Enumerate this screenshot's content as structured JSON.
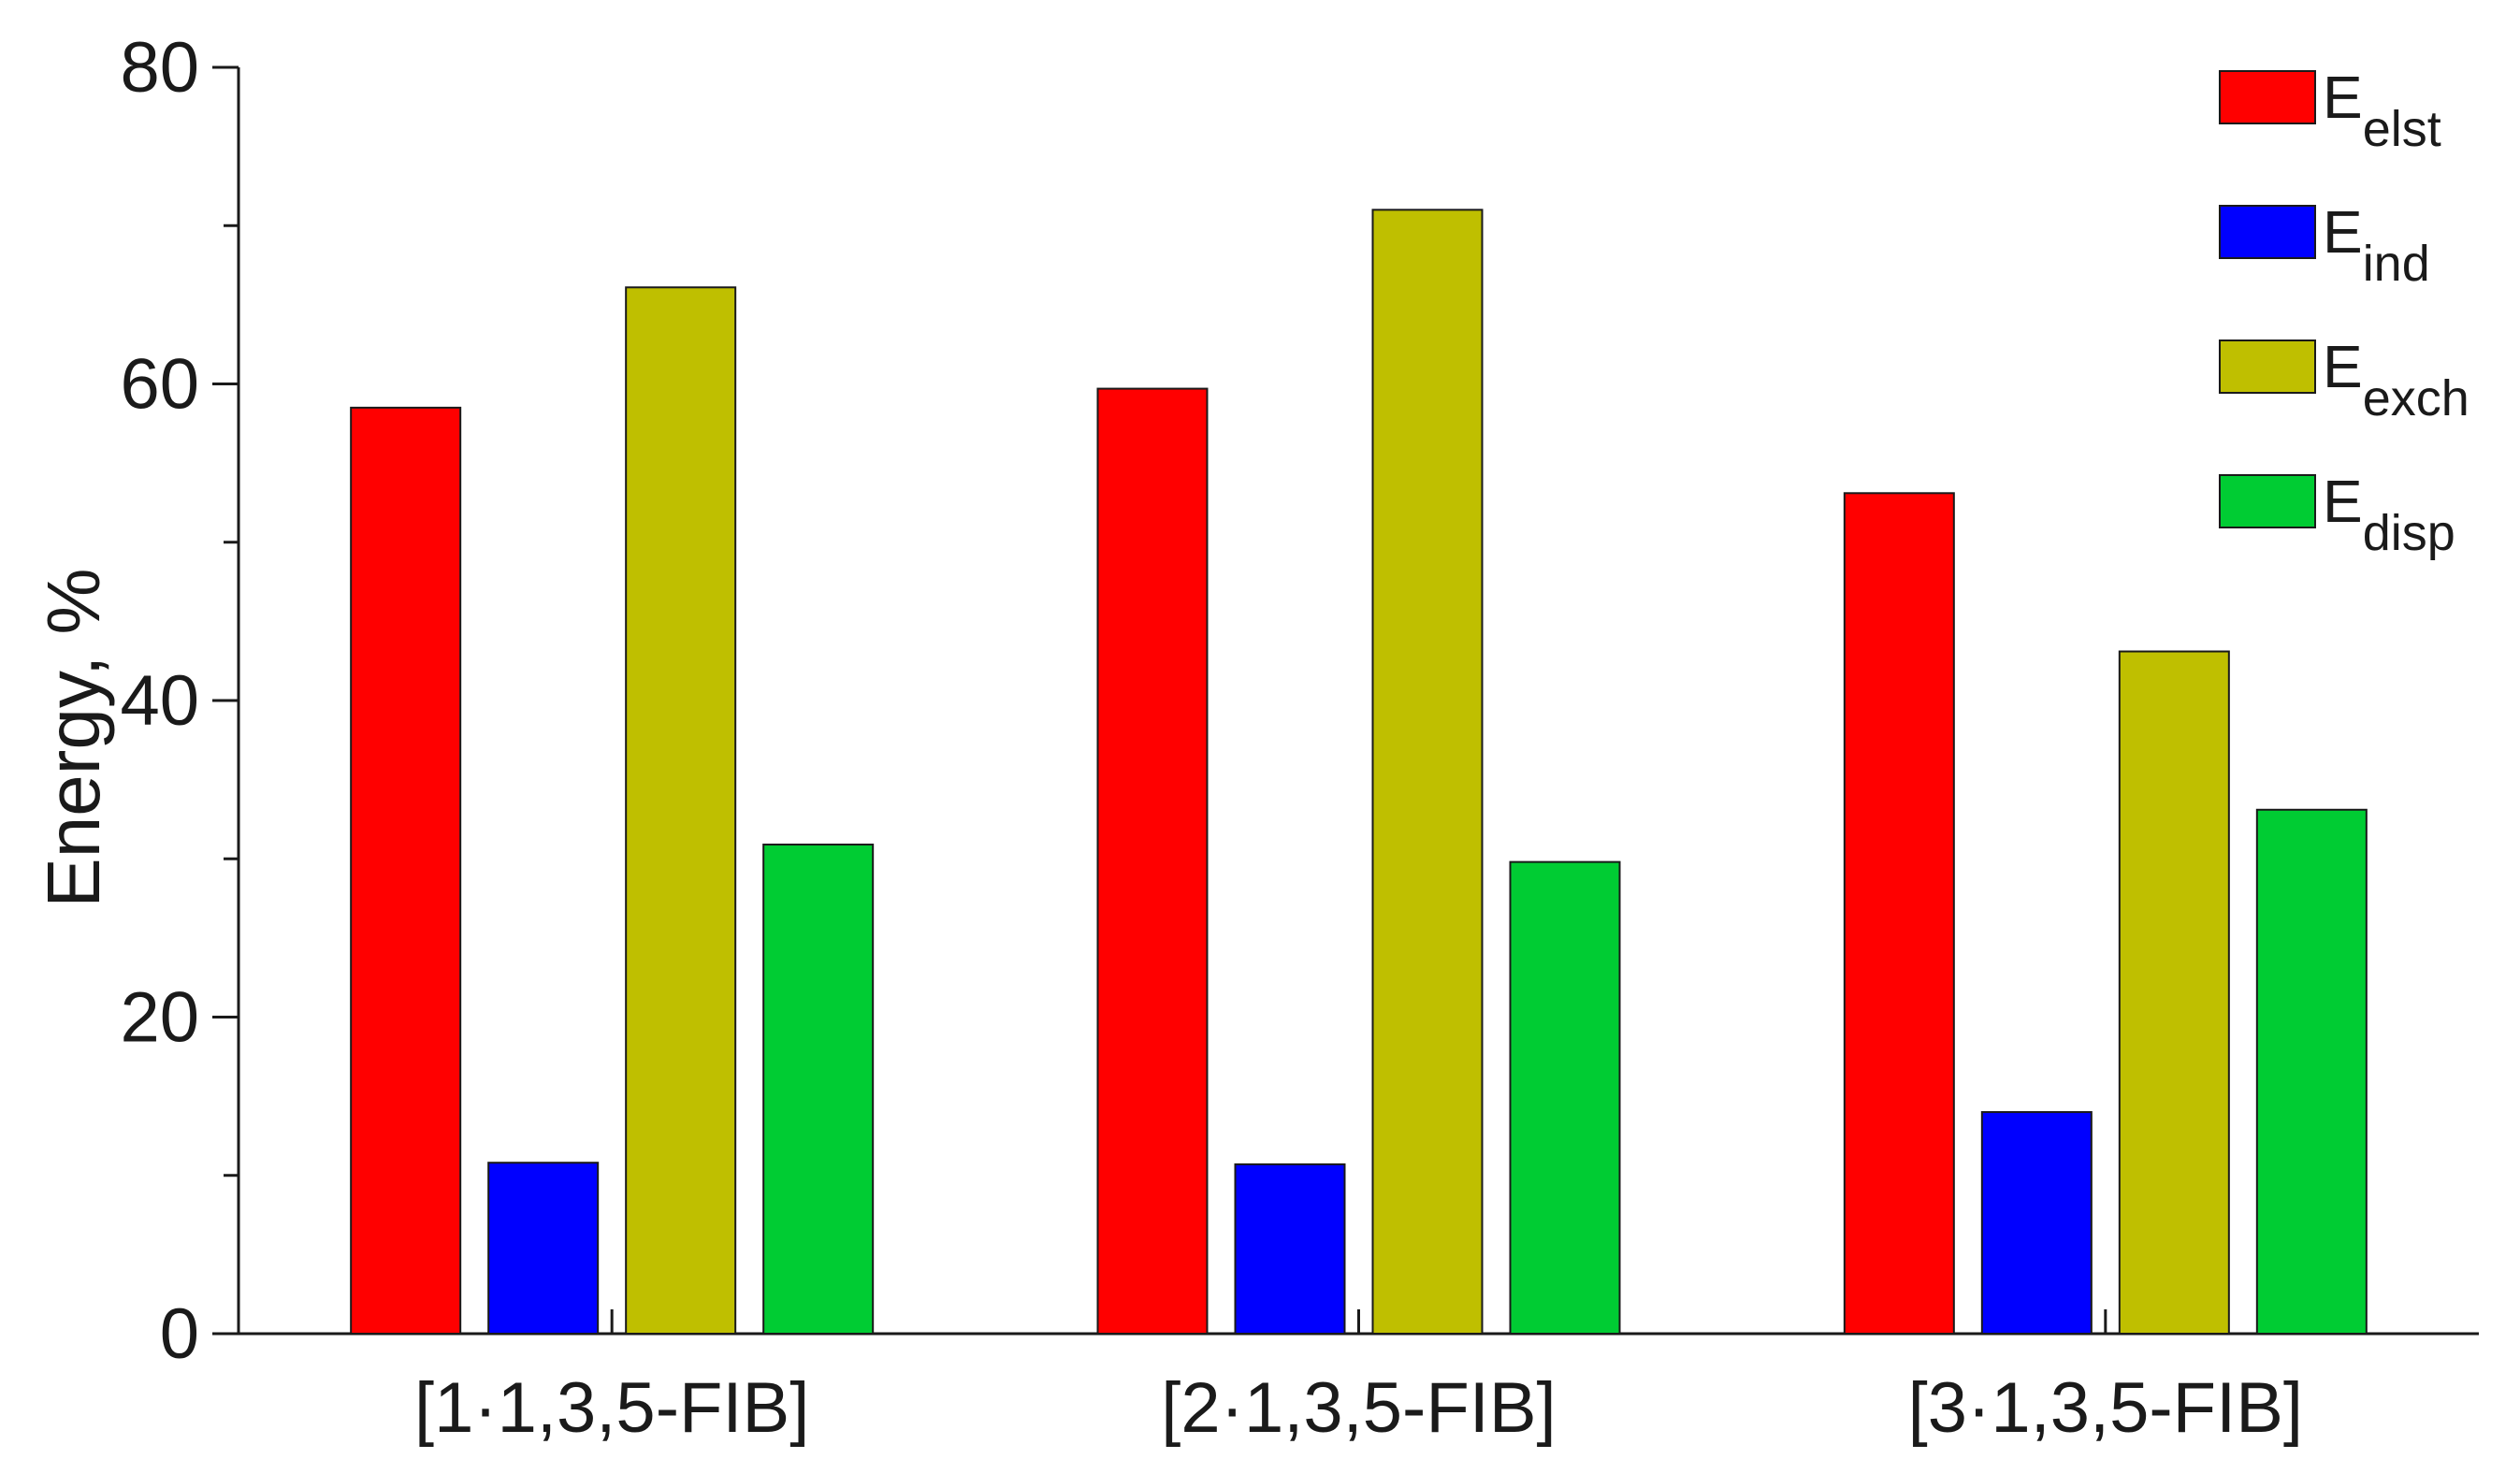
{
  "chart_data": {
    "type": "bar",
    "title": "",
    "xlabel": "",
    "ylabel": "Energy, %",
    "ylim": [
      0,
      80
    ],
    "yticks": [
      0,
      20,
      40,
      60,
      80
    ],
    "grid": false,
    "legend_position": "top-right",
    "categories": [
      "[1·1,3,5-FIB]",
      "[2·1,3,5-FIB]",
      "[3·1,3,5-FIB]"
    ],
    "series": [
      {
        "name": "E",
        "sub": "elst",
        "color": "#ff0000",
        "values": [
          58.5,
          59.7,
          53.1
        ]
      },
      {
        "name": "E",
        "sub": "ind",
        "color": "#0000ff",
        "values": [
          10.8,
          10.7,
          14.0
        ]
      },
      {
        "name": "E",
        "sub": "exch",
        "color": "#bfbf00",
        "values": [
          66.1,
          71.0,
          43.1
        ]
      },
      {
        "name": "E",
        "sub": "disp",
        "color": "#00cc33",
        "values": [
          30.9,
          29.8,
          33.1
        ]
      }
    ]
  }
}
